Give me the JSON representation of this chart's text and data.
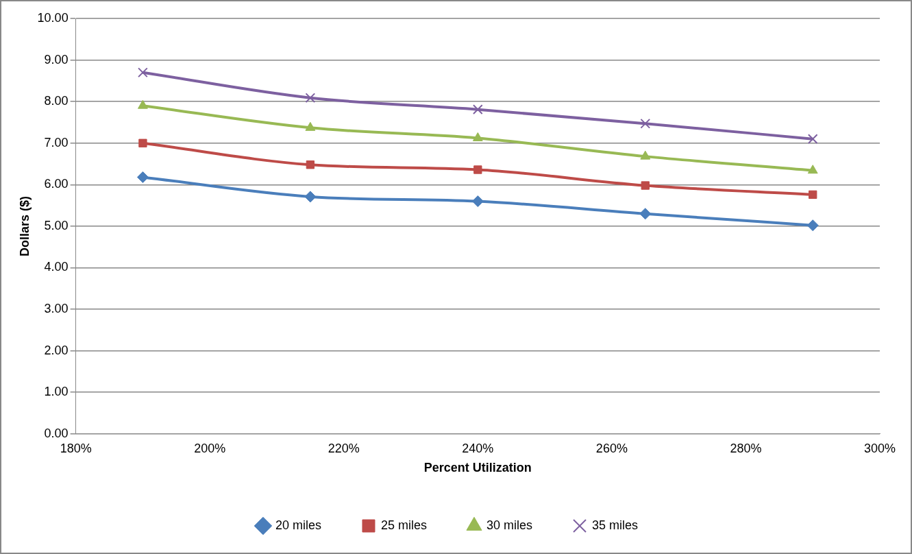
{
  "chart_data": {
    "type": "line",
    "xlabel": "Percent Utilization",
    "ylabel": "Dollars ($)",
    "x": [
      190,
      215,
      240,
      265,
      290
    ],
    "xlim": [
      180,
      300
    ],
    "xticks": [
      {
        "value": 180,
        "label": "180%"
      },
      {
        "value": 200,
        "label": "200%"
      },
      {
        "value": 220,
        "label": "220%"
      },
      {
        "value": 240,
        "label": "240%"
      },
      {
        "value": 260,
        "label": "260%"
      },
      {
        "value": 280,
        "label": "280%"
      },
      {
        "value": 300,
        "label": "300%"
      }
    ],
    "ylim": [
      0,
      10
    ],
    "yticks": [
      {
        "value": 0,
        "label": "0.00"
      },
      {
        "value": 1,
        "label": "1.00"
      },
      {
        "value": 2,
        "label": "2.00"
      },
      {
        "value": 3,
        "label": "3.00"
      },
      {
        "value": 4,
        "label": "4.00"
      },
      {
        "value": 5,
        "label": "5.00"
      },
      {
        "value": 6,
        "label": "6.00"
      },
      {
        "value": 7,
        "label": "7.00"
      },
      {
        "value": 8,
        "label": "8.00"
      },
      {
        "value": 9,
        "label": "9.00"
      },
      {
        "value": 10,
        "label": "10.00"
      }
    ],
    "series": [
      {
        "name": "20 miles",
        "color": "#4a7ebb",
        "marker": "diamond",
        "values": [
          6.18,
          5.71,
          5.6,
          5.3,
          5.02
        ]
      },
      {
        "name": "25 miles",
        "color": "#be4b48",
        "marker": "square",
        "values": [
          7.0,
          6.48,
          6.36,
          5.98,
          5.76
        ]
      },
      {
        "name": "30 miles",
        "color": "#98b954",
        "marker": "triangle",
        "values": [
          7.9,
          7.37,
          7.12,
          6.68,
          6.34
        ]
      },
      {
        "name": "35 miles",
        "color": "#7d60a0",
        "marker": "cross",
        "values": [
          8.7,
          8.09,
          7.81,
          7.47,
          7.1
        ]
      }
    ],
    "grid": "y",
    "legend": "bottom",
    "line_style": "solid"
  }
}
